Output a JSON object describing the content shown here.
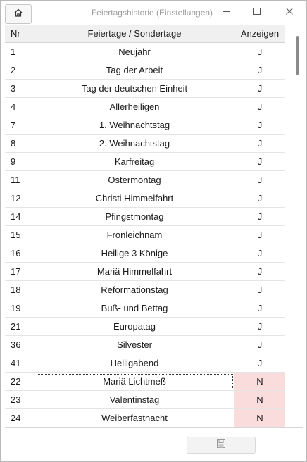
{
  "window": {
    "title": "Feiertagshistorie (Einstellungen)",
    "home_icon": "home-icon",
    "minimize_icon": "minimize-icon",
    "maximize_icon": "maximize-icon",
    "close_icon": "close-icon"
  },
  "table": {
    "columns": [
      "Nr",
      "Feiertage / Sondertage",
      "Anzeigen"
    ],
    "rows": [
      {
        "nr": "1",
        "name": "Neujahr",
        "show": "J"
      },
      {
        "nr": "2",
        "name": "Tag der Arbeit",
        "show": "J"
      },
      {
        "nr": "3",
        "name": "Tag der deutschen Einheit",
        "show": "J"
      },
      {
        "nr": "4",
        "name": "Allerheiligen",
        "show": "J"
      },
      {
        "nr": "7",
        "name": "1. Weihnachtstag",
        "show": "J"
      },
      {
        "nr": "8",
        "name": "2. Weihnachtstag",
        "show": "J"
      },
      {
        "nr": "9",
        "name": "Karfreitag",
        "show": "J"
      },
      {
        "nr": "11",
        "name": "Ostermontag",
        "show": "J"
      },
      {
        "nr": "12",
        "name": "Christi Himmelfahrt",
        "show": "J"
      },
      {
        "nr": "14",
        "name": "Pfingstmontag",
        "show": "J"
      },
      {
        "nr": "15",
        "name": "Fronleichnam",
        "show": "J"
      },
      {
        "nr": "16",
        "name": "Heilige 3 Könige",
        "show": "J"
      },
      {
        "nr": "17",
        "name": "Mariä Himmelfahrt",
        "show": "J"
      },
      {
        "nr": "18",
        "name": "Reformationstag",
        "show": "J"
      },
      {
        "nr": "19",
        "name": "Buß- und Bettag",
        "show": "J"
      },
      {
        "nr": "21",
        "name": "Europatag",
        "show": "J"
      },
      {
        "nr": "36",
        "name": "Silvester",
        "show": "J"
      },
      {
        "nr": "41",
        "name": "Heiligabend",
        "show": "J"
      },
      {
        "nr": "22",
        "name": "Mariä Lichtmeß",
        "show": "N",
        "selected": true
      },
      {
        "nr": "23",
        "name": "Valentinstag",
        "show": "N"
      },
      {
        "nr": "24",
        "name": "Weiberfastnacht",
        "show": "N"
      }
    ]
  },
  "footer": {
    "save_icon": "save-icon"
  },
  "colors": {
    "no_highlight": "#fbdcdc",
    "header_bg": "#f0f0f0",
    "title_text": "#9a9a9a"
  }
}
